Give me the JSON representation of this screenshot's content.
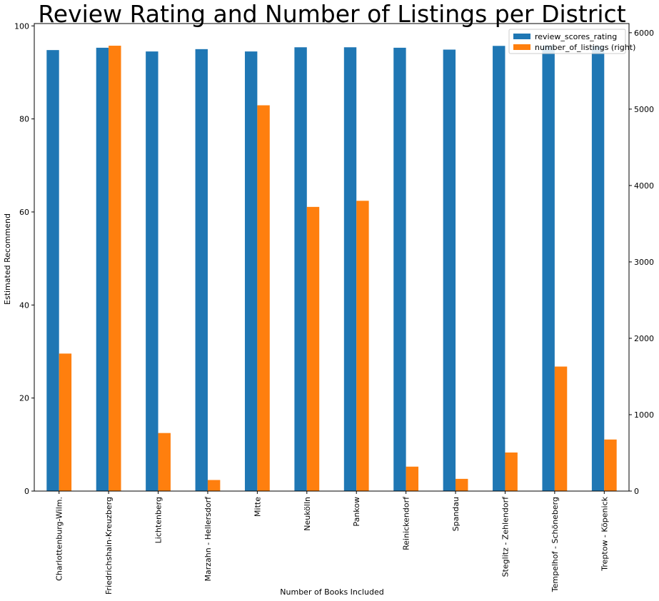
{
  "chart_data": {
    "type": "bar",
    "title": "Review Rating and Number of Listings per District",
    "xlabel": "Number of Books Included",
    "ylabel": "Estimated Recommend",
    "ylabel_right": "",
    "categories": [
      "Charlottenburg-Wilm.",
      "Friedrichshain-Kreuzberg",
      "Lichtenberg",
      "Marzahn - Hellersdorf",
      "Mitte",
      "Neukölln",
      "Pankow",
      "Reinickendorf",
      "Spandau",
      "Steglitz - Zehlendorf",
      "Tempelhof - Schöneberg",
      "Treptow - Köpenick"
    ],
    "series": [
      {
        "name": "review_scores_rating",
        "axis": "left",
        "color": "#1f77b4",
        "values": [
          94.8,
          95.3,
          94.5,
          95.0,
          94.5,
          95.4,
          95.4,
          95.3,
          94.9,
          95.7,
          95.8,
          95.7
        ]
      },
      {
        "name": "number_of_listings (right)",
        "axis": "right",
        "color": "#ff7f0e",
        "values": [
          1800,
          5830,
          760,
          145,
          5050,
          3720,
          3800,
          320,
          160,
          505,
          1630,
          675
        ]
      }
    ],
    "ylim": [
      0,
      100.5
    ],
    "yticks": [
      "0",
      "20",
      "40",
      "60",
      "80",
      "100"
    ],
    "ylim_right": [
      0,
      6120
    ],
    "yticks_right": [
      "0",
      "1000",
      "2000",
      "3000",
      "4000",
      "5000",
      "6000"
    ],
    "legend_position": "top-right",
    "grid": false
  }
}
